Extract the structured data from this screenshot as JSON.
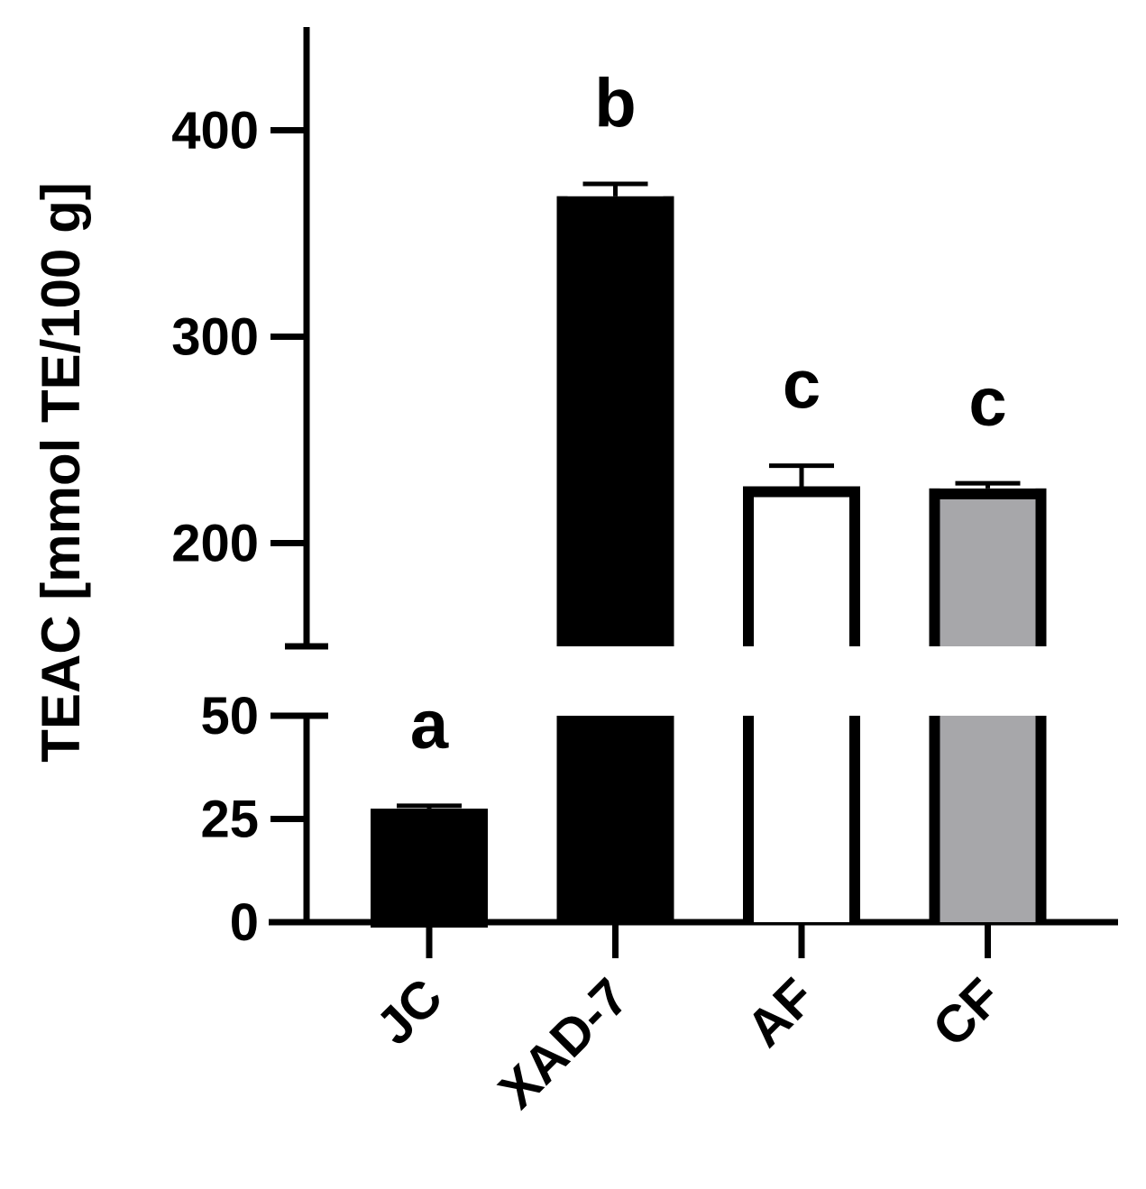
{
  "chart_data": {
    "type": "bar",
    "title": "",
    "xlabel": "",
    "ylabel": "TEAC [mmol TE/100 g]",
    "categories": [
      "JC",
      "XAD-7",
      "AF",
      "CF"
    ],
    "values": [
      27.5,
      368,
      227.5,
      226.5
    ],
    "errors": [
      0.7,
      6,
      10,
      2.5
    ],
    "significance_letters": [
      "a",
      "b",
      "c",
      "c"
    ],
    "y_axis_break": true,
    "lower_segment": {
      "ylim": [
        0,
        50
      ],
      "ticks": [
        0,
        25,
        50
      ]
    },
    "upper_segment": {
      "ylim": [
        150,
        450
      ],
      "ticks": [
        200,
        300,
        400
      ]
    },
    "bar_fill_colors": [
      "#000000",
      "#000000",
      "#ffffff",
      "#a7a7aa"
    ],
    "bar_edge_color": "#000000",
    "grid": false,
    "legend": "none"
  }
}
